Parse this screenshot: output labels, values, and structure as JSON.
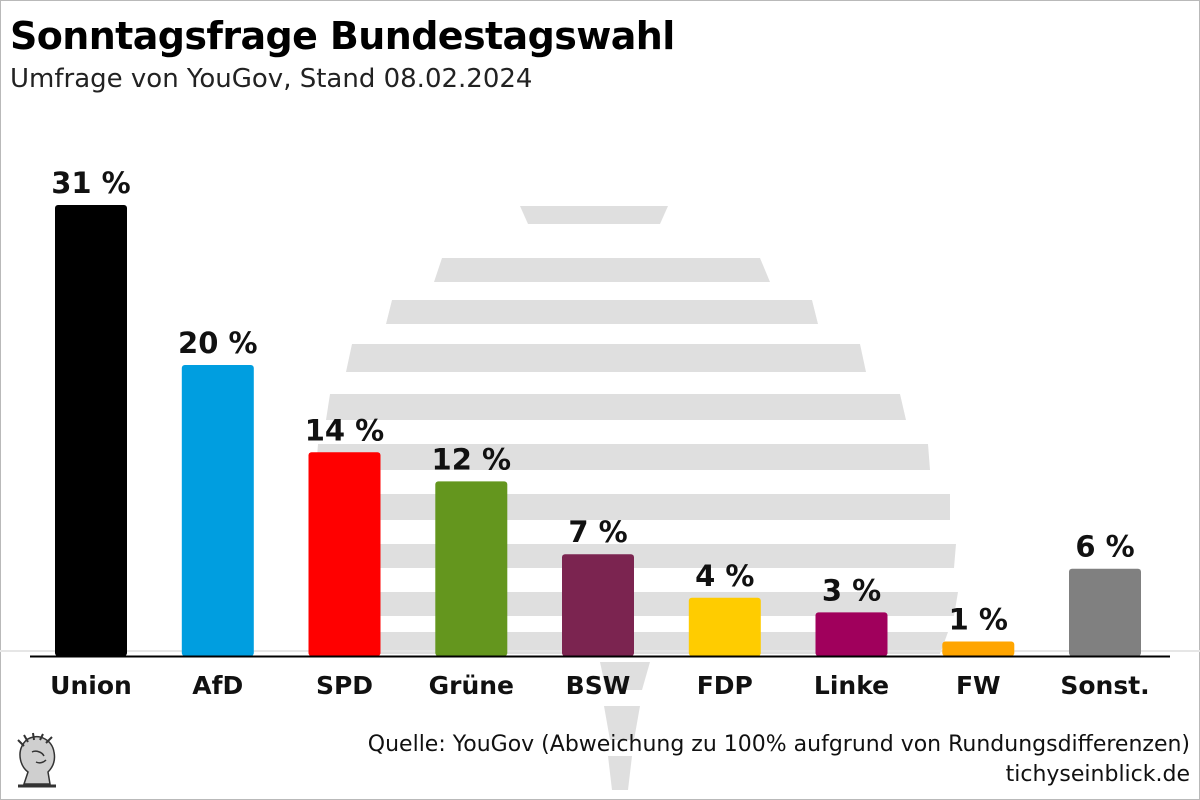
{
  "header": {
    "title": "Sonntagsfrage Bundestagswahl",
    "subtitle": "Umfrage von YouGov, Stand 08.02.2024"
  },
  "footer": {
    "source": "Quelle: YouGov (Abweichung zu 100% aufgrund von Rundungsdifferenzen)",
    "site": "tichyseinblick.de"
  },
  "chart_data": {
    "type": "bar",
    "title": "Sonntagsfrage Bundestagswahl",
    "subtitle": "Umfrage von YouGov, Stand 08.02.2024",
    "categories": [
      "Union",
      "AfD",
      "SPD",
      "Grüne",
      "BSW",
      "FDP",
      "Linke",
      "FW",
      "Sonst."
    ],
    "values": [
      31,
      20,
      14,
      12,
      7,
      4,
      3,
      1,
      6
    ],
    "value_labels": [
      "31 %",
      "20 %",
      "14 %",
      "12 %",
      "7 %",
      "4 %",
      "3 %",
      "1 %",
      "6 %"
    ],
    "colors": [
      "#000000",
      "#009ee0",
      "#ff0000",
      "#64961e",
      "#7b2450",
      "#ffcc00",
      "#a0005c",
      "#ffa500",
      "#808080"
    ],
    "unit": "%",
    "ylim": [
      0,
      31
    ],
    "grid": false,
    "legend": "none"
  }
}
